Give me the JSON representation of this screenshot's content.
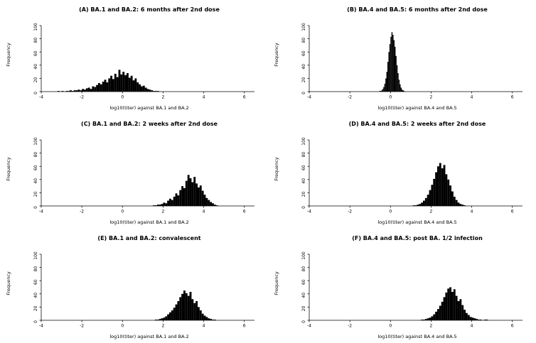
{
  "figure": {
    "background": "#ffffff",
    "bar_color": "#000000",
    "axis_color": "#000000"
  },
  "chart_data": [
    {
      "type": "bar",
      "subtype": "histogram",
      "panel": "A",
      "title": "(A) BA.1 and BA.2: 6 months after 2nd dose",
      "xlabel": "log10(titer) against BA.1 and BA.2",
      "ylabel": "Frequency",
      "xlim": [
        -4,
        6.5
      ],
      "ylim": [
        0,
        100
      ],
      "xticks": [
        -4,
        -2,
        0,
        2,
        4,
        6
      ],
      "yticks": [
        0,
        20,
        40,
        60,
        80,
        100
      ],
      "bin_start": -3.2,
      "bin_width": 0.1,
      "counts": [
        1,
        0,
        1,
        0,
        1,
        1,
        2,
        1,
        2,
        2,
        3,
        2,
        4,
        3,
        5,
        6,
        4,
        8,
        7,
        10,
        13,
        11,
        15,
        18,
        14,
        20,
        24,
        19,
        27,
        22,
        33,
        26,
        30,
        25,
        28,
        21,
        24,
        17,
        20,
        14,
        11,
        8,
        9,
        6,
        4,
        3,
        2,
        1,
        1,
        1
      ]
    },
    {
      "type": "bar",
      "subtype": "histogram",
      "panel": "B",
      "title": "(B) BA.4 and BA.5: 6 months after 2nd dose",
      "xlabel": "log10(titer) against BA.4 and BA.5",
      "ylabel": "Frequency",
      "xlim": [
        -4,
        6.5
      ],
      "ylim": [
        0,
        100
      ],
      "xticks": [
        -4,
        -2,
        0,
        2,
        4,
        6
      ],
      "yticks": [
        0,
        20,
        40,
        60,
        80,
        100
      ],
      "bin_start": -0.55,
      "bin_width": 0.05,
      "counts": [
        1,
        1,
        2,
        4,
        7,
        12,
        20,
        30,
        45,
        60,
        72,
        83,
        90,
        86,
        78,
        68,
        54,
        40,
        28,
        18,
        11,
        6,
        3,
        2,
        1
      ]
    },
    {
      "type": "bar",
      "subtype": "histogram",
      "panel": "C",
      "title": "(C) BA.1 and BA.2: 2 weeks after 2nd dose",
      "xlabel": "log10(titer) against BA.1 and BA.2",
      "ylabel": "Frequency",
      "xlim": [
        -4,
        6.5
      ],
      "ylim": [
        0,
        100
      ],
      "xticks": [
        -4,
        -2,
        0,
        2,
        4,
        6
      ],
      "yticks": [
        0,
        20,
        40,
        60,
        80,
        100
      ],
      "bin_start": 1.5,
      "bin_width": 0.1,
      "counts": [
        1,
        1,
        2,
        2,
        3,
        5,
        4,
        8,
        11,
        9,
        14,
        19,
        16,
        24,
        30,
        27,
        38,
        47,
        42,
        36,
        44,
        34,
        28,
        31,
        23,
        17,
        12,
        9,
        6,
        4,
        2,
        1
      ]
    },
    {
      "type": "bar",
      "subtype": "histogram",
      "panel": "D",
      "title": "(D) BA.4 and BA.5: 2 weeks after 2nd dose",
      "xlabel": "log10(titer) against BA.4 and BA.5",
      "ylabel": "Frequency",
      "xlim": [
        -4,
        6.5
      ],
      "ylim": [
        0,
        100
      ],
      "xticks": [
        -4,
        -2,
        0,
        2,
        4,
        6
      ],
      "yticks": [
        0,
        20,
        40,
        60,
        80,
        100
      ],
      "bin_start": 1.1,
      "bin_width": 0.1,
      "counts": [
        1,
        1,
        2,
        3,
        5,
        8,
        12,
        17,
        24,
        32,
        41,
        51,
        60,
        65,
        57,
        62,
        48,
        40,
        31,
        22,
        14,
        9,
        5,
        3,
        2,
        1
      ]
    },
    {
      "type": "bar",
      "subtype": "histogram",
      "panel": "E",
      "title": "(E) BA.1 and BA.2: convalescent",
      "xlabel": "log10(titer) against BA.1 and BA.2",
      "ylabel": "Frequency",
      "xlim": [
        -4,
        6.5
      ],
      "ylim": [
        0,
        100
      ],
      "xticks": [
        -4,
        -2,
        0,
        2,
        4,
        6
      ],
      "yticks": [
        0,
        20,
        40,
        60,
        80,
        100
      ],
      "bin_start": 1.6,
      "bin_width": 0.1,
      "counts": [
        1,
        1,
        2,
        3,
        4,
        6,
        9,
        12,
        15,
        19,
        24,
        29,
        35,
        40,
        45,
        41,
        37,
        43,
        32,
        26,
        29,
        20,
        15,
        10,
        7,
        5,
        3,
        2,
        1,
        1
      ]
    },
    {
      "type": "bar",
      "subtype": "histogram",
      "panel": "F",
      "title": "(F) BA.4 and BA.5: post BA. 1/2 infection",
      "xlabel": "log10(titer) against BA.4 and BA.5",
      "ylabel": "Frequency",
      "xlim": [
        -4,
        6.5
      ],
      "ylim": [
        0,
        100
      ],
      "xticks": [
        -4,
        -2,
        0,
        2,
        4,
        6
      ],
      "yticks": [
        0,
        20,
        40,
        60,
        80,
        100
      ],
      "bin_start": 1.5,
      "bin_width": 0.1,
      "counts": [
        1,
        1,
        2,
        3,
        4,
        6,
        9,
        13,
        17,
        22,
        28,
        35,
        42,
        48,
        50,
        43,
        47,
        37,
        29,
        32,
        23,
        16,
        11,
        8,
        5,
        4,
        3,
        2,
        1,
        1,
        0,
        1,
        1
      ]
    }
  ]
}
